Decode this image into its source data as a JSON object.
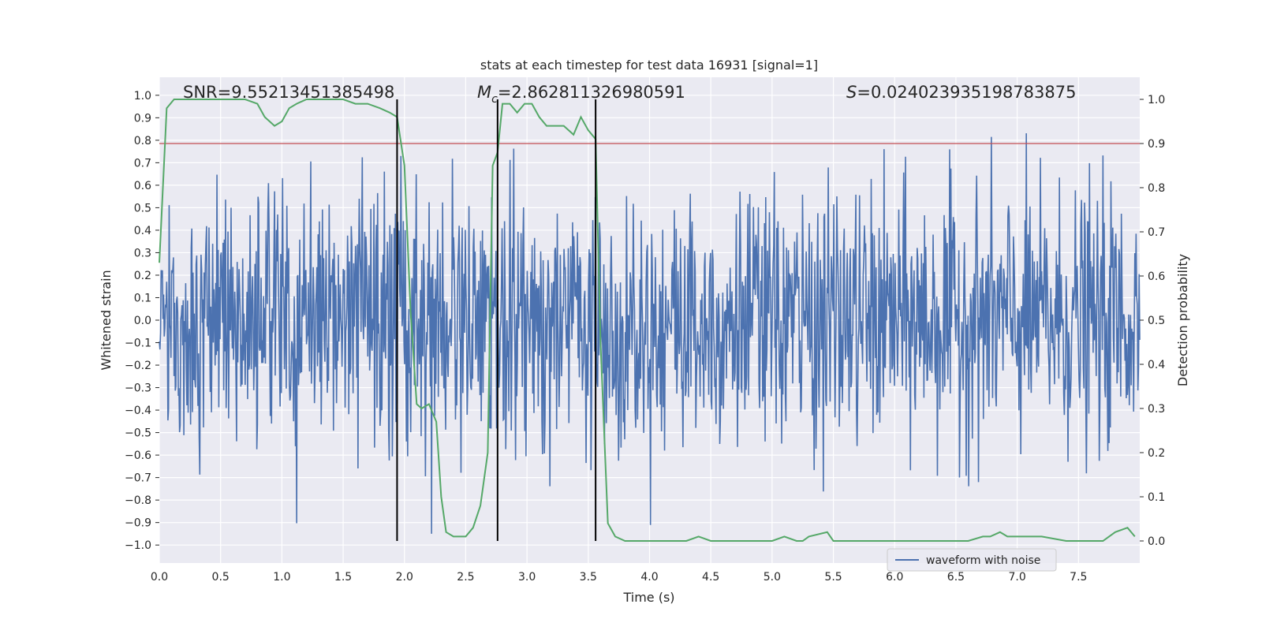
{
  "chart_data": {
    "type": "line",
    "title": "stats at each timestep for test data 16931 [signal=1]",
    "xlabel": "Time (s)",
    "ylabel_left": "Whitened strain",
    "ylabel_right": "Detection probability",
    "xlim": [
      0.0,
      8.0
    ],
    "ylim_left": [
      -1.08,
      1.08
    ],
    "ylim_right": [
      -0.05,
      1.05
    ],
    "x_ticks": [
      "0.0",
      "0.5",
      "1.0",
      "1.5",
      "2.0",
      "2.5",
      "3.0",
      "3.5",
      "4.0",
      "4.5",
      "5.0",
      "5.5",
      "6.0",
      "6.5",
      "7.0",
      "7.5"
    ],
    "y_left_ticks": [
      "1.0",
      "0.9",
      "0.8",
      "0.7",
      "0.6",
      "0.5",
      "0.4",
      "0.3",
      "0.2",
      "0.1",
      "0.0",
      "-0.1",
      "-0.2",
      "-0.3",
      "-0.4",
      "-0.5",
      "-0.6",
      "-0.7",
      "-0.8",
      "-0.9",
      "-1.0"
    ],
    "y_right_ticks": [
      "1.0",
      "0.9",
      "0.8",
      "0.7",
      "0.6",
      "0.5",
      "0.4",
      "0.3",
      "0.2",
      "0.1",
      "0.0"
    ],
    "grid": true,
    "legend": {
      "location": "lower-right",
      "entries": [
        "waveform with noise"
      ]
    },
    "annotations": {
      "snr": "SNR=9.55213451385498",
      "mc_symbol": "M",
      "mc_sub": "c",
      "mc_value": "=2.862811326980591",
      "s_symbol": "S",
      "s_value": "=0.024023935198783875"
    },
    "threshold_right": 0.9,
    "vertical_lines_x": [
      1.94,
      2.76,
      3.56
    ],
    "vertical_lines_right_range": [
      0.0,
      1.0
    ],
    "series": [
      {
        "name": "waveform with noise",
        "axis": "left",
        "kind": "noise",
        "n_samples": 1600,
        "rms": 0.28,
        "peak_positive": 1.0,
        "peak_negative": -0.95
      },
      {
        "axis": "right",
        "kind": "line",
        "x": [
          0.0,
          0.06,
          0.12,
          0.2,
          0.3,
          0.4,
          0.5,
          0.6,
          0.7,
          0.8,
          0.86,
          0.94,
          1.0,
          1.06,
          1.12,
          1.2,
          1.3,
          1.4,
          1.5,
          1.6,
          1.7,
          1.8,
          1.88,
          1.94,
          2.0,
          2.05,
          2.1,
          2.14,
          2.2,
          2.26,
          2.3,
          2.34,
          2.4,
          2.5,
          2.56,
          2.62,
          2.68,
          2.72,
          2.76,
          2.8,
          2.86,
          2.92,
          2.98,
          3.04,
          3.1,
          3.16,
          3.22,
          3.3,
          3.38,
          3.44,
          3.5,
          3.56,
          3.6,
          3.66,
          3.72,
          3.8,
          3.9,
          4.0,
          4.1,
          4.2,
          4.3,
          4.4,
          4.5,
          4.6,
          4.8,
          5.0,
          5.1,
          5.2,
          5.25,
          5.3,
          5.45,
          5.5,
          5.6,
          5.8,
          6.0,
          6.2,
          6.4,
          6.6,
          6.72,
          6.78,
          6.86,
          6.92,
          7.0,
          7.1,
          7.2,
          7.4,
          7.7,
          7.8,
          7.9,
          7.96
        ],
        "y": [
          0.63,
          0.98,
          1.0,
          1.0,
          1.0,
          1.0,
          1.0,
          1.0,
          1.0,
          0.99,
          0.96,
          0.94,
          0.95,
          0.98,
          0.99,
          1.0,
          1.0,
          1.0,
          1.0,
          0.99,
          0.99,
          0.98,
          0.97,
          0.96,
          0.85,
          0.52,
          0.31,
          0.3,
          0.31,
          0.27,
          0.1,
          0.02,
          0.01,
          0.01,
          0.03,
          0.08,
          0.2,
          0.85,
          0.88,
          0.99,
          0.99,
          0.97,
          0.99,
          0.99,
          0.96,
          0.94,
          0.94,
          0.94,
          0.92,
          0.96,
          0.93,
          0.91,
          0.45,
          0.04,
          0.01,
          0.0,
          0.0,
          0.0,
          0.0,
          0.0,
          0.0,
          0.01,
          0.0,
          0.0,
          0.0,
          0.0,
          0.01,
          0.0,
          0.0,
          0.01,
          0.02,
          0.0,
          0.0,
          0.0,
          0.0,
          0.0,
          0.0,
          0.0,
          0.01,
          0.01,
          0.02,
          0.01,
          0.01,
          0.01,
          0.01,
          0.0,
          0.0,
          0.02,
          0.03,
          0.01
        ]
      }
    ],
    "colors": {
      "waveform": "#4c72b0",
      "probability": "#55a868",
      "threshold": "#c44e52",
      "vlines": "#000000",
      "plot_bg": "#eaeaf2",
      "grid": "#ffffff"
    }
  }
}
